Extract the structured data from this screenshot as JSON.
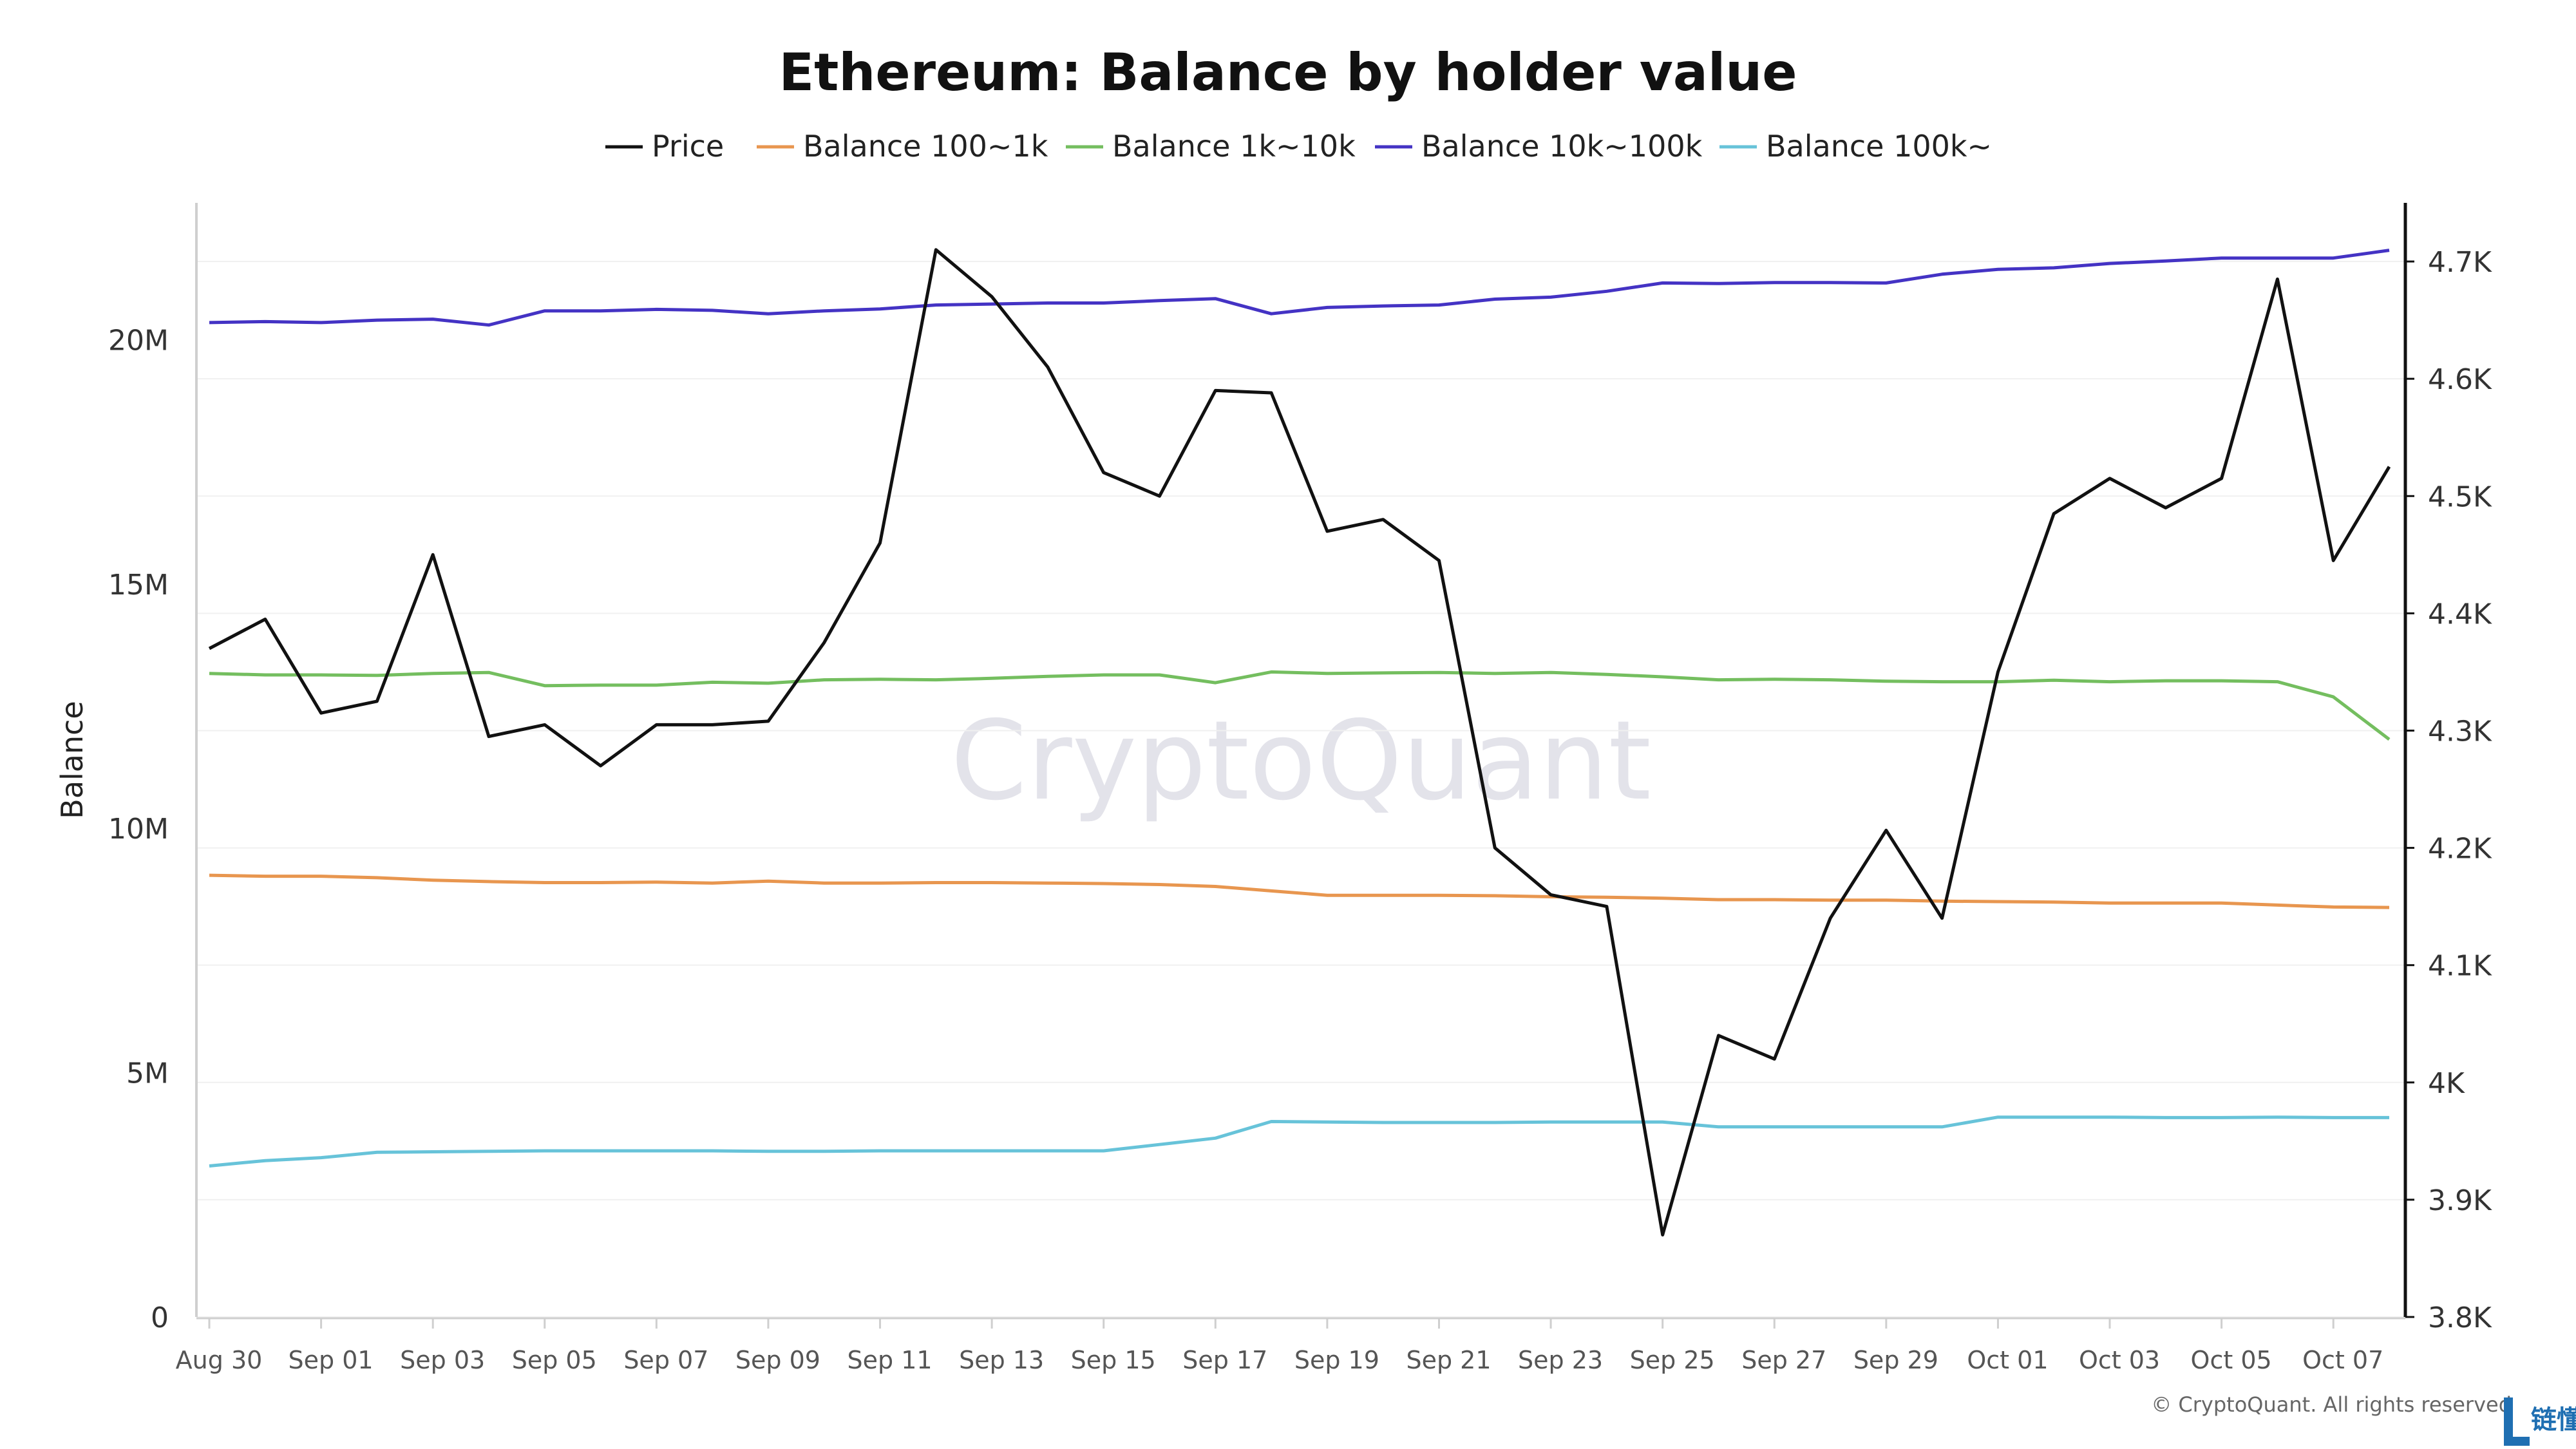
{
  "chart_data": {
    "type": "line",
    "title": "Ethereum: Balance by holder value",
    "ylabel": "Balance",
    "ylabel_right": "",
    "ylim": [
      0,
      22800000
    ],
    "ylim_right": [
      3800,
      4750
    ],
    "yticks": [
      0,
      5000000,
      10000000,
      15000000,
      20000000
    ],
    "ytick_labels": [
      "0",
      "5M",
      "10M",
      "15M",
      "20M"
    ],
    "yticks_right": [
      3800,
      3900,
      4000,
      4100,
      4200,
      4300,
      4400,
      4500,
      4600,
      4700
    ],
    "ytick_labels_right": [
      "3.8K",
      "3.9K",
      "4K",
      "4.1K",
      "4.2K",
      "4.3K",
      "4.4K",
      "4.5K",
      "4.6K",
      "4.7K"
    ],
    "x_tick_labels": [
      "Aug 30",
      "Sep 01",
      "Sep 03",
      "Sep 05",
      "Sep 07",
      "Sep 09",
      "Sep 11",
      "Sep 13",
      "Sep 15",
      "Sep 17",
      "Sep 19",
      "Sep 21",
      "Sep 23",
      "Sep 25",
      "Sep 27",
      "Sep 29",
      "Oct 01",
      "Oct 03",
      "Oct 05",
      "Oct 07"
    ],
    "x": [
      "Aug 30",
      "Aug 31",
      "Sep 01",
      "Sep 02",
      "Sep 03",
      "Sep 04",
      "Sep 05",
      "Sep 06",
      "Sep 07",
      "Sep 08",
      "Sep 09",
      "Sep 10",
      "Sep 11",
      "Sep 12",
      "Sep 13",
      "Sep 14",
      "Sep 15",
      "Sep 16",
      "Sep 17",
      "Sep 18",
      "Sep 19",
      "Sep 20",
      "Sep 21",
      "Sep 22",
      "Sep 23",
      "Sep 24",
      "Sep 25",
      "Sep 26",
      "Sep 27",
      "Sep 28",
      "Sep 29",
      "Sep 30",
      "Oct 01",
      "Oct 02",
      "Oct 03",
      "Oct 04",
      "Oct 05",
      "Oct 06",
      "Oct 07",
      "Oct 08"
    ],
    "legend_position": "top",
    "grid": true,
    "series": [
      {
        "name": "Price",
        "axis": "right",
        "color": "#111111",
        "values": [
          4370,
          4395,
          4315,
          4325,
          4450,
          4295,
          4305,
          4270,
          4305,
          4305,
          4308,
          4375,
          4460,
          4710,
          4670,
          4610,
          4520,
          4500,
          4590,
          4588,
          4470,
          4480,
          4445,
          4200,
          4160,
          4150,
          3870,
          4040,
          4020,
          4140,
          4215,
          4140,
          4350,
          4485,
          4515,
          4490,
          4515,
          4685,
          4445,
          4525
        ]
      },
      {
        "name": "Balance 100~1k",
        "axis": "left",
        "color": "#e8964f",
        "values": [
          9040000,
          9020000,
          9020000,
          8990000,
          8940000,
          8910000,
          8890000,
          8890000,
          8900000,
          8880000,
          8920000,
          8880000,
          8880000,
          8890000,
          8890000,
          8880000,
          8870000,
          8850000,
          8810000,
          8720000,
          8630000,
          8630000,
          8630000,
          8620000,
          8600000,
          8590000,
          8570000,
          8540000,
          8540000,
          8530000,
          8530000,
          8510000,
          8500000,
          8490000,
          8470000,
          8470000,
          8470000,
          8430000,
          8390000,
          8380000
        ]
      },
      {
        "name": "Balance 1k~10k",
        "axis": "left",
        "color": "#74be5f",
        "values": [
          13170000,
          13140000,
          13140000,
          13130000,
          13170000,
          13190000,
          12920000,
          12930000,
          12930000,
          12990000,
          12970000,
          13040000,
          13050000,
          13040000,
          13070000,
          13110000,
          13140000,
          13140000,
          12980000,
          13200000,
          13170000,
          13180000,
          13190000,
          13170000,
          13190000,
          13150000,
          13100000,
          13040000,
          13050000,
          13040000,
          13010000,
          13000000,
          13000000,
          13030000,
          13000000,
          13020000,
          13020000,
          13000000,
          12690000,
          11820000
        ]
      },
      {
        "name": "Balance 10k~100k",
        "axis": "left",
        "color": "#4433c4",
        "values": [
          20350000,
          20370000,
          20350000,
          20400000,
          20420000,
          20300000,
          20590000,
          20590000,
          20620000,
          20600000,
          20530000,
          20590000,
          20630000,
          20710000,
          20730000,
          20750000,
          20750000,
          20800000,
          20840000,
          20530000,
          20660000,
          20690000,
          20710000,
          20830000,
          20870000,
          20990000,
          21160000,
          21150000,
          21170000,
          21170000,
          21160000,
          21340000,
          21440000,
          21470000,
          21560000,
          21610000,
          21670000,
          21670000,
          21670000,
          21830000
        ]
      },
      {
        "name": "Balance 100k~",
        "axis": "left",
        "color": "#67c3d9",
        "values": [
          3090000,
          3200000,
          3260000,
          3370000,
          3380000,
          3390000,
          3400000,
          3400000,
          3400000,
          3400000,
          3390000,
          3390000,
          3400000,
          3400000,
          3400000,
          3400000,
          3400000,
          3530000,
          3660000,
          4000000,
          3990000,
          3980000,
          3980000,
          3980000,
          3990000,
          3990000,
          3990000,
          3890000,
          3890000,
          3890000,
          3890000,
          3890000,
          4090000,
          4090000,
          4090000,
          4080000,
          4080000,
          4090000,
          4080000,
          4080000
        ]
      }
    ]
  },
  "watermark": "CryptoQuant",
  "copyright": "© CryptoQuant. All rights reserved",
  "logo_text": "链懂"
}
